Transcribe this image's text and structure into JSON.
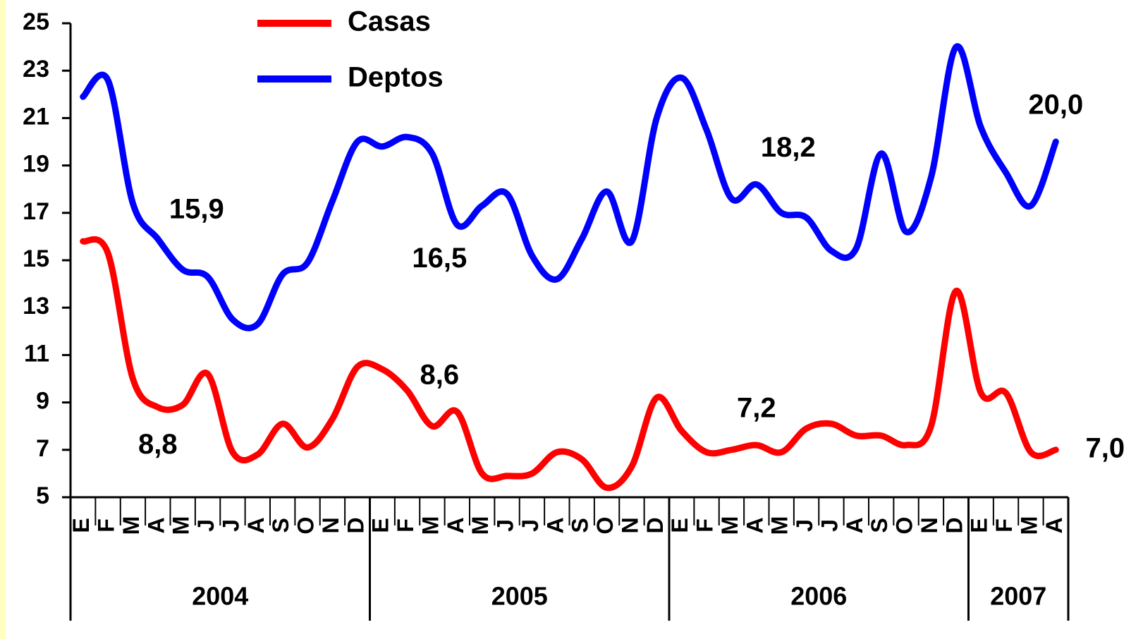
{
  "chart_data": {
    "type": "line",
    "categories": [
      "E",
      "F",
      "M",
      "A",
      "M",
      "J",
      "J",
      "A",
      "S",
      "O",
      "N",
      "D",
      "E",
      "F",
      "M",
      "A",
      "M",
      "J",
      "J",
      "A",
      "S",
      "O",
      "N",
      "D",
      "E",
      "F",
      "M",
      "A",
      "M",
      "J",
      "J",
      "A",
      "S",
      "O",
      "N",
      "D",
      "E",
      "F",
      "M",
      "A"
    ],
    "year_groups": [
      {
        "name": "2004",
        "span": 12
      },
      {
        "name": "2005",
        "span": 12
      },
      {
        "name": "2006",
        "span": 12
      },
      {
        "name": "2007",
        "span": 4
      }
    ],
    "series": [
      {
        "name": "Casas",
        "color": "#ff0000",
        "values": [
          15.8,
          15.3,
          10.0,
          8.8,
          8.9,
          10.2,
          6.9,
          6.8,
          8.1,
          7.1,
          8.3,
          10.5,
          10.4,
          9.5,
          8.0,
          8.6,
          6.0,
          5.9,
          6.0,
          6.9,
          6.6,
          5.4,
          6.3,
          9.2,
          7.8,
          6.9,
          7.0,
          7.2,
          6.9,
          7.9,
          8.1,
          7.6,
          7.6,
          7.2,
          8.0,
          13.7,
          9.4,
          9.4,
          6.9,
          7.0
        ],
        "value_labels": [
          null,
          null,
          null,
          "8,8",
          null,
          null,
          null,
          null,
          null,
          null,
          null,
          null,
          null,
          null,
          null,
          "8,6",
          null,
          null,
          null,
          null,
          null,
          null,
          null,
          null,
          null,
          null,
          null,
          "7,2",
          null,
          null,
          null,
          null,
          null,
          null,
          null,
          null,
          null,
          null,
          null,
          "7,0"
        ]
      },
      {
        "name": "Deptos",
        "color": "#0000ff",
        "values": [
          21.9,
          22.6,
          17.4,
          15.9,
          14.6,
          14.3,
          12.5,
          12.3,
          14.4,
          14.9,
          17.5,
          20.0,
          19.8,
          20.2,
          19.5,
          16.5,
          17.3,
          17.8,
          15.2,
          14.2,
          15.9,
          17.9,
          15.8,
          21.0,
          22.7,
          20.5,
          17.6,
          18.2,
          17.0,
          16.8,
          15.4,
          15.5,
          19.5,
          16.2,
          18.5,
          24.0,
          20.6,
          18.7,
          17.3,
          20.0
        ],
        "value_labels": [
          null,
          null,
          null,
          "15,9",
          null,
          null,
          null,
          null,
          null,
          null,
          null,
          null,
          null,
          null,
          null,
          "16,5",
          null,
          null,
          null,
          null,
          null,
          null,
          null,
          null,
          null,
          null,
          null,
          "18,2",
          null,
          null,
          null,
          null,
          null,
          null,
          null,
          null,
          null,
          null,
          null,
          "20,0"
        ]
      }
    ],
    "ylim": [
      5,
      25
    ],
    "yticks": [
      5,
      7,
      9,
      11,
      13,
      15,
      17,
      19,
      21,
      23,
      25
    ],
    "legend": "top"
  }
}
